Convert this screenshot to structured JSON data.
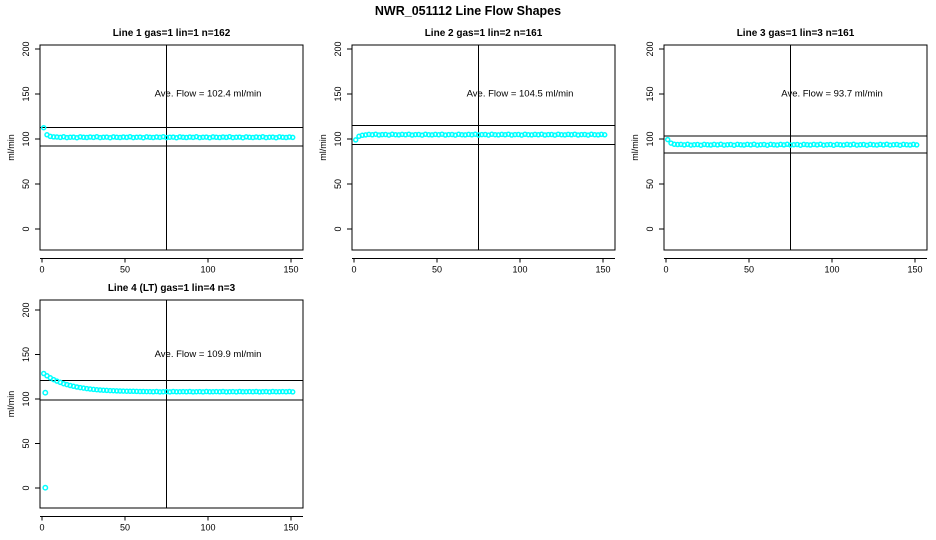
{
  "main_title": "NWR_051112  Line Flow Shapes",
  "accent_color": "#00FFFF",
  "chart_data": [
    {
      "type": "scatter",
      "title": "Line 1 gas=1 lin=1 n=162",
      "annotation": "Ave. Flow =  102.4  ml/min",
      "ave_flow_ml_min": 102.4,
      "n": 162,
      "ylabel": "ml/min",
      "xticks": [
        0,
        50,
        100,
        150
      ],
      "yticks": [
        0,
        50,
        100,
        150,
        200
      ],
      "xlim": [
        -1.2,
        157.2
      ],
      "ylim": [
        -23.4,
        204.4
      ],
      "vline_x": 75,
      "ref_lines": {
        "upper": 112.6,
        "lower": 92.2
      },
      "point_color": "#00FFFF",
      "x_start": 1,
      "x_step": 2,
      "values": [
        112.5,
        104.6,
        102.8,
        102.3,
        102.2,
        101.7,
        102.4,
        101.5,
        101.9,
        102.1,
        101.4,
        102.3,
        101.8,
        101.6,
        102.2,
        101.7,
        102.4,
        101.5,
        101.9,
        102.1,
        101.4,
        102.3,
        101.8,
        101.6,
        102.2,
        101.7,
        102.4,
        101.5,
        101.9,
        102.1,
        101.4,
        102.3,
        101.8,
        101.6,
        102.2,
        101.7,
        102.4,
        101.5,
        101.9,
        102.1,
        101.4,
        102.3,
        101.8,
        101.6,
        102.2,
        101.7,
        102.4,
        101.5,
        101.9,
        102.1,
        101.4,
        102.3,
        101.8,
        101.6,
        102.2,
        101.7,
        102.4,
        101.5,
        101.9,
        102.1,
        101.4,
        102.3,
        101.8,
        101.6,
        102.2,
        101.7,
        102.4,
        101.5,
        101.9,
        102.1,
        101.4,
        102.3,
        101.8,
        101.6,
        102.2,
        101.7
      ],
      "extra_points": []
    },
    {
      "type": "scatter",
      "title": "Line 2 gas=1 lin=2 n=161",
      "annotation": "Ave. Flow =  104.5  ml/min",
      "ave_flow_ml_min": 104.5,
      "n": 161,
      "ylabel": "ml/min",
      "xticks": [
        0,
        50,
        100,
        150
      ],
      "yticks": [
        0,
        50,
        100,
        150,
        200
      ],
      "xlim": [
        -1.2,
        157.2
      ],
      "ylim": [
        -23.4,
        204.4
      ],
      "vline_x": 75,
      "ref_lines": {
        "upper": 115.0,
        "lower": 94.1
      },
      "point_color": "#00FFFF",
      "x_start": 1,
      "x_step": 2,
      "values": [
        99.0,
        103.0,
        104.1,
        104.5,
        105.1,
        104.6,
        105.3,
        104.4,
        104.8,
        105.0,
        104.3,
        105.2,
        104.7,
        104.5,
        105.1,
        104.6,
        105.3,
        104.4,
        104.8,
        105.0,
        104.3,
        105.2,
        104.7,
        104.5,
        105.1,
        104.6,
        105.3,
        104.4,
        104.8,
        105.0,
        104.3,
        105.2,
        104.7,
        104.5,
        105.1,
        104.6,
        105.3,
        104.4,
        104.8,
        105.0,
        104.3,
        105.2,
        104.7,
        104.5,
        105.1,
        104.6,
        105.3,
        104.4,
        104.8,
        105.0,
        104.3,
        105.2,
        104.7,
        104.5,
        105.1,
        104.6,
        105.3,
        104.4,
        104.8,
        105.0,
        104.3,
        105.2,
        104.7,
        104.5,
        105.1,
        104.6,
        105.3,
        104.4,
        104.8,
        105.0,
        104.3,
        105.2,
        104.7,
        104.5,
        105.1,
        104.6
      ],
      "extra_points": []
    },
    {
      "type": "scatter",
      "title": "Line 3 gas=1 lin=3 n=161",
      "annotation": "Ave. Flow =  93.7  ml/min",
      "ave_flow_ml_min": 93.7,
      "n": 161,
      "ylabel": "ml/min",
      "xticks": [
        0,
        50,
        100,
        150
      ],
      "yticks": [
        0,
        50,
        100,
        150,
        200
      ],
      "xlim": [
        -1.2,
        157.2
      ],
      "ylim": [
        -23.4,
        204.4
      ],
      "vline_x": 75,
      "ref_lines": {
        "upper": 103.1,
        "lower": 84.3
      },
      "point_color": "#00FFFF",
      "x_start": 1,
      "x_step": 2,
      "values": [
        99.3,
        95.4,
        94.1,
        93.8,
        93.9,
        93.4,
        94.1,
        93.2,
        93.6,
        93.8,
        93.1,
        94.0,
        93.5,
        93.3,
        93.9,
        93.4,
        94.1,
        93.2,
        93.6,
        93.8,
        93.1,
        94.0,
        93.5,
        93.3,
        93.9,
        93.4,
        94.1,
        93.2,
        93.6,
        93.8,
        93.1,
        94.0,
        93.5,
        93.3,
        93.9,
        93.4,
        94.1,
        93.2,
        93.6,
        93.8,
        93.1,
        94.0,
        93.5,
        93.3,
        93.9,
        93.4,
        94.1,
        93.2,
        93.6,
        93.8,
        93.1,
        94.0,
        93.5,
        93.3,
        93.9,
        93.4,
        94.1,
        93.2,
        93.6,
        93.8,
        93.1,
        94.0,
        93.5,
        93.3,
        93.9,
        93.4,
        94.1,
        93.2,
        93.6,
        93.8,
        93.1,
        94.0,
        93.5,
        93.3,
        93.9,
        93.4
      ],
      "extra_points": []
    },
    {
      "type": "scatter",
      "title": "Line 4 (LT) gas=1 lin=4 n=3",
      "annotation": "Ave. Flow =  109.9  ml/min",
      "ave_flow_ml_min": 109.9,
      "n": 3,
      "ylabel": "ml/min",
      "xticks": [
        0,
        50,
        100,
        150
      ],
      "yticks": [
        0,
        50,
        100,
        150,
        200
      ],
      "xlim": [
        -1.2,
        157.2
      ],
      "ylim": [
        -22.5,
        211.2
      ],
      "vline_x": 75,
      "ref_lines": {
        "upper": 120.9,
        "lower": 98.9
      },
      "point_color": "#00FFFF",
      "x_start": 1,
      "x_step": 2,
      "values": [
        128.6,
        126.0,
        123.8,
        121.8,
        120.1,
        118.6,
        117.2,
        116.1,
        115.1,
        114.2,
        113.4,
        112.8,
        112.2,
        111.6,
        111.2,
        110.8,
        110.4,
        110.1,
        109.9,
        109.6,
        109.4,
        109.3,
        109.1,
        109.0,
        108.8,
        108.7,
        108.6,
        108.6,
        108.5,
        108.4,
        108.4,
        108.3,
        108.3,
        108.1,
        108.4,
        108.0,
        108.2,
        108.3,
        108.0,
        108.4,
        108.1,
        108.2,
        108.3,
        108.1,
        108.4,
        108.0,
        108.2,
        108.3,
        108.0,
        108.4,
        108.1,
        108.2,
        108.3,
        108.1,
        108.4,
        108.0,
        108.2,
        108.3,
        108.0,
        108.4,
        108.1,
        108.2,
        108.3,
        108.1,
        108.4,
        108.0,
        108.2,
        108.3,
        108.0,
        108.4,
        108.1,
        108.2,
        108.3,
        108.1,
        108.4,
        108.0
      ],
      "extra_points": [
        [
          2,
          107.0
        ],
        [
          2,
          0.3
        ]
      ]
    }
  ]
}
